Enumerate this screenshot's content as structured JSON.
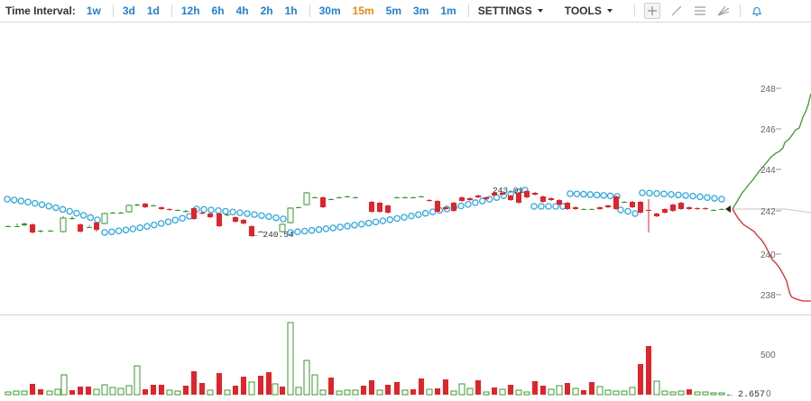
{
  "toolbar": {
    "time_interval_label": "Time Interval:",
    "groups": [
      [
        "1w",
        "3d",
        "1d"
      ],
      [
        "12h",
        "6h",
        "4h",
        "2h",
        "1h"
      ],
      [
        "30m",
        "15m",
        "5m",
        "3m",
        "1m"
      ]
    ],
    "active_interval": "15m",
    "settings_label": "SETTINGS",
    "tools_label": "TOOLS",
    "tool_icons": [
      "crosshair-icon",
      "trendline-icon",
      "horizontal-lines-icon",
      "fib-fan-icon"
    ],
    "alert_icon": "bell-icon"
  },
  "price_axis": {
    "ticks": [
      "248",
      "246",
      "244",
      "242",
      "240",
      "238"
    ],
    "current_marker_icon": "left-triangle-icon"
  },
  "annotations": {
    "low_label": "← 240.54",
    "high_label": "243.01"
  },
  "volume_axis": {
    "ticks": [
      "500",
      "0"
    ],
    "current_label": "← 2.657"
  },
  "colors": {
    "up": "#3a9a2e",
    "down": "#e0242b",
    "sar": "#2ea7e0",
    "accent": "#1f7fd6",
    "active": "#f0861f"
  }
}
